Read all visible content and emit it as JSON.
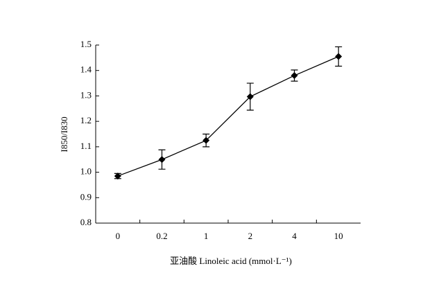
{
  "chart_data": {
    "type": "line",
    "categories": [
      "0",
      "0.2",
      "1",
      "2",
      "4",
      "10"
    ],
    "values": [
      0.985,
      1.05,
      1.125,
      1.297,
      1.38,
      1.455
    ],
    "errors": [
      0.01,
      0.038,
      0.025,
      0.053,
      0.022,
      0.038
    ],
    "color": "#000000",
    "ylim": [
      0.8,
      1.5
    ],
    "yticks": [
      0.8,
      0.9,
      {
        "value": 1,
        "label": "1.0"
      },
      1.1,
      1.2,
      1.3,
      1.4,
      1.5
    ],
    "y_label": "I850/I830",
    "x_label": "亚油酸 Linoleic acid (mmol·L⁻¹)"
  }
}
